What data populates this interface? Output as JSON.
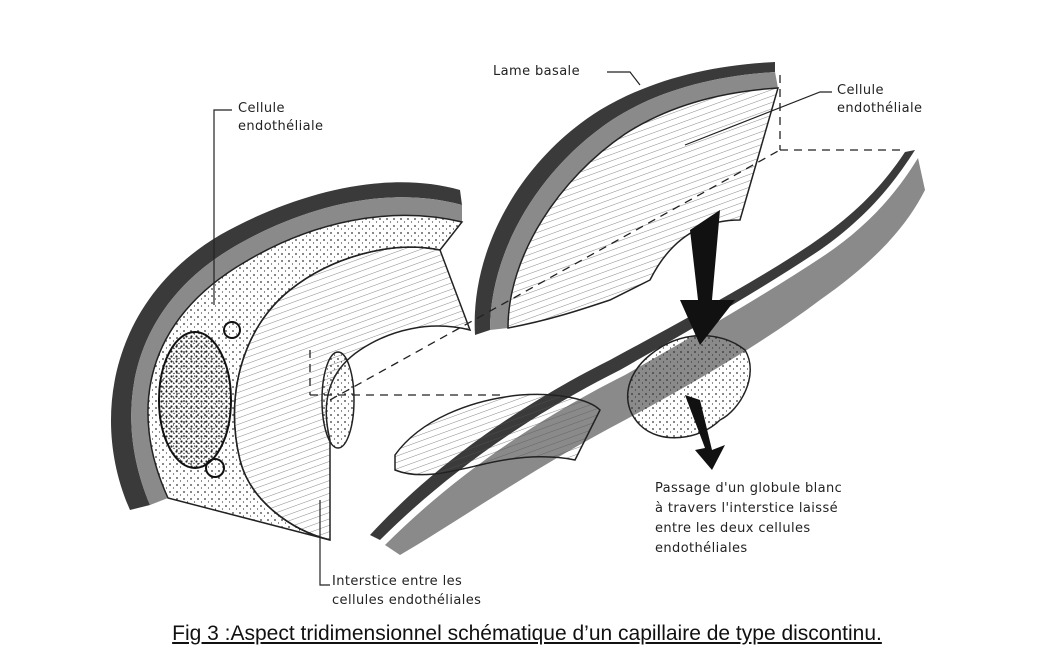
{
  "labels": {
    "lame_basale": "Lame basale",
    "cellule_left_1": "Cellule",
    "cellule_left_2": "endothéliale",
    "cellule_right_1": "Cellule",
    "cellule_right_2": "endothéliale",
    "passage_1": "Passage d'un globule blanc",
    "passage_2": "à travers l'interstice laissé",
    "passage_3": "entre les deux cellules",
    "passage_4": "endothéliales",
    "interstice_1": "Interstice entre les",
    "interstice_2": "cellules endothéliales"
  },
  "caption": "Fig 3 :Aspect tridimensionnel schématique d’un capillaire de type discontinu."
}
